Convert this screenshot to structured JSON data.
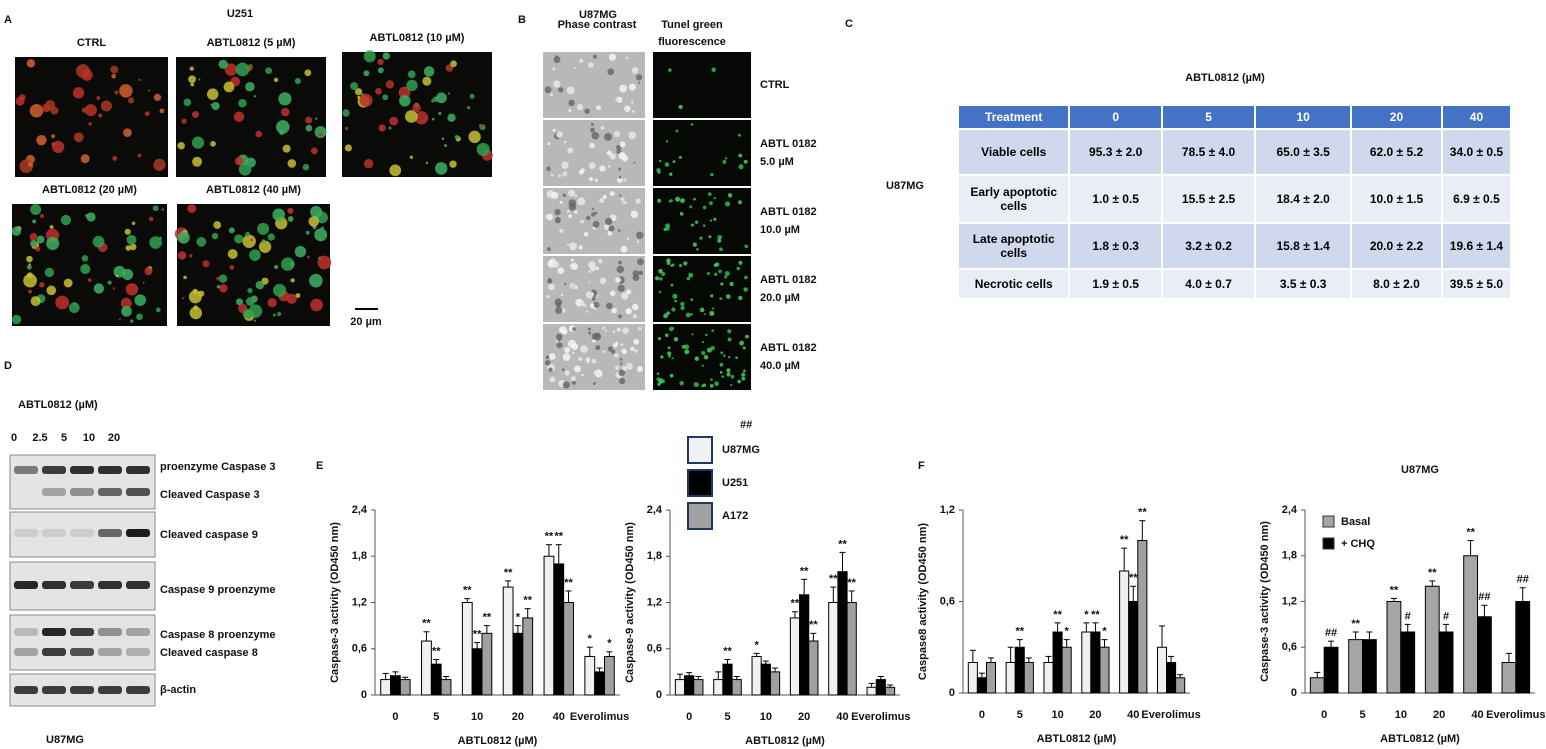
{
  "panels": {
    "A": {
      "label": "A",
      "title": "U251",
      "images": [
        "CTRL",
        "ABTL0812 (5 µM)",
        "ABTL0812 (10 µM)",
        "ABTL0812 (20 µM)",
        "ABTL0812 (40 µM)"
      ],
      "scale": "20 µm"
    },
    "B": {
      "label": "B",
      "title": "U87MG",
      "columns": [
        "Phase contrast",
        "Tunel  green",
        "fluorescence"
      ],
      "rows": [
        [
          "CTRL"
        ],
        [
          "ABTL 0182",
          "5.0 µM"
        ],
        [
          "ABTL 0182",
          "10.0 µM"
        ],
        [
          "ABTL 0182",
          "20.0 µM"
        ],
        [
          "ABTL 0182",
          "40.0 µM"
        ]
      ]
    },
    "C": {
      "label": "C",
      "title": "ABTL0812 (µM)",
      "row_group": "U87MG",
      "table": {
        "header": [
          "Treatment",
          "0",
          "5",
          "10",
          "20",
          "40"
        ],
        "rows": [
          [
            "Viable cells",
            "95.3 ± 2.0",
            "78.5 ± 4.0",
            "65.0 ± 3.5",
            "62.0 ± 5.2",
            "34.0 ± 0.5"
          ],
          [
            "Early apoptotic cells",
            "1.0 ± 0.5",
            "15.5 ± 2.5",
            "18.4 ± 2.0",
            "10.0 ± 1.5",
            "6.9 ± 0.5"
          ],
          [
            "Late apoptotic cells",
            "1.8 ± 0.3",
            "3.2 ± 0.2",
            "15.8 ± 1.4",
            "20.0 ± 2.2",
            "19.6 ± 1.4"
          ],
          [
            "Necrotic cells",
            "1.9 ± 0.5",
            "4.0 ± 0.7",
            "3.5 ± 0.3",
            "8.0 ± 2.0",
            "39.5 ± 5.0"
          ]
        ]
      }
    },
    "D": {
      "label": "D",
      "title": "ABTL0812 (µM)",
      "lanes": [
        "0",
        "2.5",
        "5",
        "10",
        "20"
      ],
      "bands": [
        "proenzyme Caspase 3",
        "Cleaved Caspase 3",
        "Cleaved caspase 9",
        "Caspase 9 proenzyme",
        "Caspase 8 proenzyme",
        "Cleaved caspase 8",
        "β-actin"
      ],
      "footer": "U87MG"
    },
    "E": {
      "label": "E"
    },
    "F": {
      "label": "F"
    }
  },
  "chart_data": [
    {
      "type": "bar",
      "ylabel": "Caspase-3 activity (OD450 nm)",
      "xlabel": "ABTL0812 (µM)",
      "categories": [
        "0",
        "5",
        "10",
        "20",
        "40",
        "Everolimus"
      ],
      "ylim": [
        0,
        2.4
      ],
      "yticks": [
        0,
        {
          "value": 0.6,
          "label": "0,6"
        },
        {
          "value": 1.2,
          "label": "1,2"
        },
        {
          "value": 1.8,
          "label": "1,8"
        },
        {
          "value": 2.4,
          "label": "2,4"
        }
      ],
      "legend": "right",
      "legend_note": "##",
      "series": [
        {
          "name": "U87MG",
          "color": "#f0f0f0",
          "values": [
            0.2,
            0.7,
            1.2,
            1.4,
            1.8,
            0.5
          ],
          "errors": [
            0.08,
            0.12,
            0.05,
            0.08,
            0.15,
            0.12
          ],
          "annotations": [
            null,
            "**",
            "**",
            "**",
            "**",
            "*"
          ]
        },
        {
          "name": "U251",
          "color": "#000000",
          "values": [
            0.25,
            0.4,
            0.6,
            0.8,
            1.7,
            0.3
          ],
          "errors": [
            0.05,
            0.06,
            0.08,
            0.1,
            0.25,
            0.05
          ],
          "annotations": [
            null,
            "**",
            "**",
            "*",
            "**",
            null
          ]
        },
        {
          "name": "A172",
          "color": "#a0a0a0",
          "values": [
            0.2,
            0.2,
            0.8,
            1.0,
            1.2,
            0.5
          ],
          "errors": [
            0.03,
            0.04,
            0.1,
            0.12,
            0.15,
            0.06
          ],
          "annotations": [
            null,
            null,
            "**",
            "**",
            "**",
            "*"
          ]
        }
      ]
    },
    {
      "type": "bar",
      "ylabel": "Caspase-9 activity (OD450 nm)",
      "xlabel": "ABTL0812 (µM)",
      "categories": [
        "0",
        "5",
        "10",
        "20",
        "40",
        "Everolimus"
      ],
      "ylim": [
        0,
        2.4
      ],
      "yticks": [
        0,
        {
          "value": 0.6,
          "label": "0,6"
        },
        {
          "value": 1.2,
          "label": "1,2"
        },
        {
          "value": 1.8,
          "label": "1,8"
        },
        {
          "value": 2.4,
          "label": "2,4"
        }
      ],
      "series": [
        {
          "color": "#f0f0f0",
          "values": [
            0.2,
            0.2,
            0.5,
            1.0,
            1.2,
            0.1
          ],
          "errors": [
            0.07,
            0.1,
            0.04,
            0.08,
            0.2,
            0.05
          ],
          "annotations": [
            null,
            null,
            "*",
            "**",
            "**",
            null
          ]
        },
        {
          "color": "#000000",
          "values": [
            0.25,
            0.4,
            0.4,
            1.3,
            1.6,
            0.2
          ],
          "errors": [
            0.04,
            0.06,
            0.04,
            0.2,
            0.25,
            0.04
          ],
          "annotations": [
            null,
            "**",
            null,
            "**",
            "**",
            null
          ]
        },
        {
          "color": "#a0a0a0",
          "values": [
            0.2,
            0.2,
            0.3,
            0.7,
            1.2,
            0.1
          ],
          "errors": [
            0.04,
            0.04,
            0.05,
            0.1,
            0.15,
            0.03
          ],
          "annotations": [
            null,
            null,
            null,
            "**",
            "**",
            null
          ]
        }
      ]
    },
    {
      "type": "bar",
      "ylabel": "Caspase8 activity (OD450 nm)",
      "xlabel": "ABTL0812 (µM)",
      "categories": [
        "0",
        "5",
        "10",
        "20",
        "40",
        "Everolimus"
      ],
      "ylim": [
        0,
        1.2
      ],
      "yticks": [
        0,
        {
          "value": 0.6,
          "label": "0,6"
        },
        {
          "value": 1.2,
          "label": "1,2"
        }
      ],
      "series": [
        {
          "color": "#f0f0f0",
          "values": [
            0.2,
            0.2,
            0.2,
            0.4,
            0.8,
            0.3
          ],
          "errors": [
            0.08,
            0.1,
            0.04,
            0.06,
            0.15,
            0.14
          ],
          "annotations": [
            null,
            null,
            null,
            "*",
            "**",
            null
          ]
        },
        {
          "color": "#000000",
          "values": [
            0.1,
            0.3,
            0.4,
            0.4,
            0.6,
            0.2
          ],
          "errors": [
            0.03,
            0.05,
            0.06,
            0.06,
            0.1,
            0.04
          ],
          "annotations": [
            null,
            "**",
            "**",
            "**",
            "**",
            null
          ]
        },
        {
          "color": "#a0a0a0",
          "values": [
            0.2,
            0.2,
            0.3,
            0.3,
            1.0,
            0.1
          ],
          "errors": [
            0.03,
            0.03,
            0.05,
            0.05,
            0.13,
            0.02
          ],
          "annotations": [
            null,
            null,
            "*",
            "*",
            "**",
            null
          ]
        }
      ]
    },
    {
      "type": "bar",
      "title": "U87MG",
      "ylabel": "Caspase-3 activity (OD450 nm)",
      "xlabel": "ABTL0812 (µM)",
      "categories": [
        "0",
        "5",
        "10",
        "20",
        "40",
        "Everolimus"
      ],
      "ylim": [
        0,
        2.4
      ],
      "yticks": [
        0,
        {
          "value": 0.6,
          "label": "0,6"
        },
        {
          "value": 1.2,
          "label": "1,2"
        },
        {
          "value": 1.8,
          "label": "1,8"
        },
        {
          "value": 2.4,
          "label": "2,4"
        }
      ],
      "legend": "upper left",
      "series": [
        {
          "name": "Basal",
          "color": "#a6a6a6",
          "values": [
            0.2,
            0.7,
            1.2,
            1.4,
            1.8,
            0.4
          ],
          "errors": [
            0.07,
            0.1,
            0.04,
            0.07,
            0.2,
            0.12
          ],
          "annotations": [
            null,
            "**",
            "**",
            "**",
            "**",
            null
          ]
        },
        {
          "name": "+ CHQ",
          "color": "#000000",
          "values": [
            0.6,
            0.7,
            0.8,
            0.8,
            1.0,
            1.2
          ],
          "errors": [
            0.08,
            0.1,
            0.1,
            0.1,
            0.15,
            0.18
          ],
          "annotations": [
            "##",
            null,
            "#",
            "#",
            "##",
            "##"
          ]
        }
      ]
    }
  ]
}
